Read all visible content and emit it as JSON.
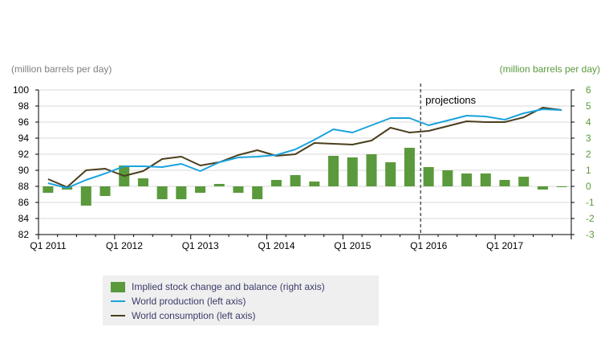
{
  "chart_data": {
    "type": "bar+line",
    "left_axis_label": "(million barrels per day)",
    "right_axis_label": "(million barrels per day)",
    "left_ylim": [
      82,
      100
    ],
    "left_ticks": [
      "100",
      "98",
      "96",
      "94",
      "92",
      "90",
      "88",
      "86",
      "84",
      "82"
    ],
    "right_ylim": [
      -3,
      6
    ],
    "right_ticks": [
      "6",
      "5",
      "4",
      "3",
      "2",
      "1",
      "0",
      "-1",
      "-2",
      "-3"
    ],
    "x_tick_labels": [
      "Q1 2011",
      "Q1 2012",
      "Q1 2013",
      "Q1 2014",
      "Q1 2015",
      "Q1 2016",
      "Q1 2017"
    ],
    "projection_label": "projections",
    "projection_start_quarter_index": 20,
    "series": [
      {
        "name": "Implied stock change and balance (right axis)",
        "kind": "bar",
        "axis": "right",
        "color": "#5a9a3c",
        "values": [
          -0.4,
          -0.2,
          -1.2,
          -0.6,
          1.3,
          0.5,
          -0.8,
          -0.8,
          -0.4,
          0.15,
          -0.4,
          -0.8,
          0.4,
          0.7,
          0.3,
          1.9,
          1.8,
          2.0,
          1.5,
          2.4,
          1.2,
          1.0,
          0.8,
          0.8,
          0.4,
          0.6,
          -0.2,
          -0.05
        ]
      },
      {
        "name": "World production (left axis)",
        "kind": "line",
        "axis": "left",
        "color": "#1aa3dc",
        "values": [
          88.4,
          87.8,
          88.8,
          89.6,
          90.5,
          90.5,
          90.4,
          90.8,
          89.9,
          91.0,
          91.6,
          91.7,
          91.9,
          92.6,
          93.8,
          95.1,
          94.7,
          95.6,
          96.5,
          96.5,
          95.6,
          96.2,
          96.8,
          96.7,
          96.3,
          97.1,
          97.6,
          97.5
        ]
      },
      {
        "name": "World consumption (left axis)",
        "kind": "line",
        "axis": "left",
        "color": "#4a3e1d",
        "values": [
          88.9,
          87.9,
          90.0,
          90.2,
          89.3,
          89.9,
          91.4,
          91.7,
          90.6,
          91.0,
          91.9,
          92.5,
          91.8,
          92.0,
          93.4,
          93.3,
          93.2,
          93.7,
          95.3,
          94.7,
          94.9,
          95.5,
          96.1,
          96.0,
          96.0,
          96.6,
          97.8,
          97.5
        ]
      }
    ],
    "grid": "horizontal",
    "legend_position": "bottom-left"
  }
}
